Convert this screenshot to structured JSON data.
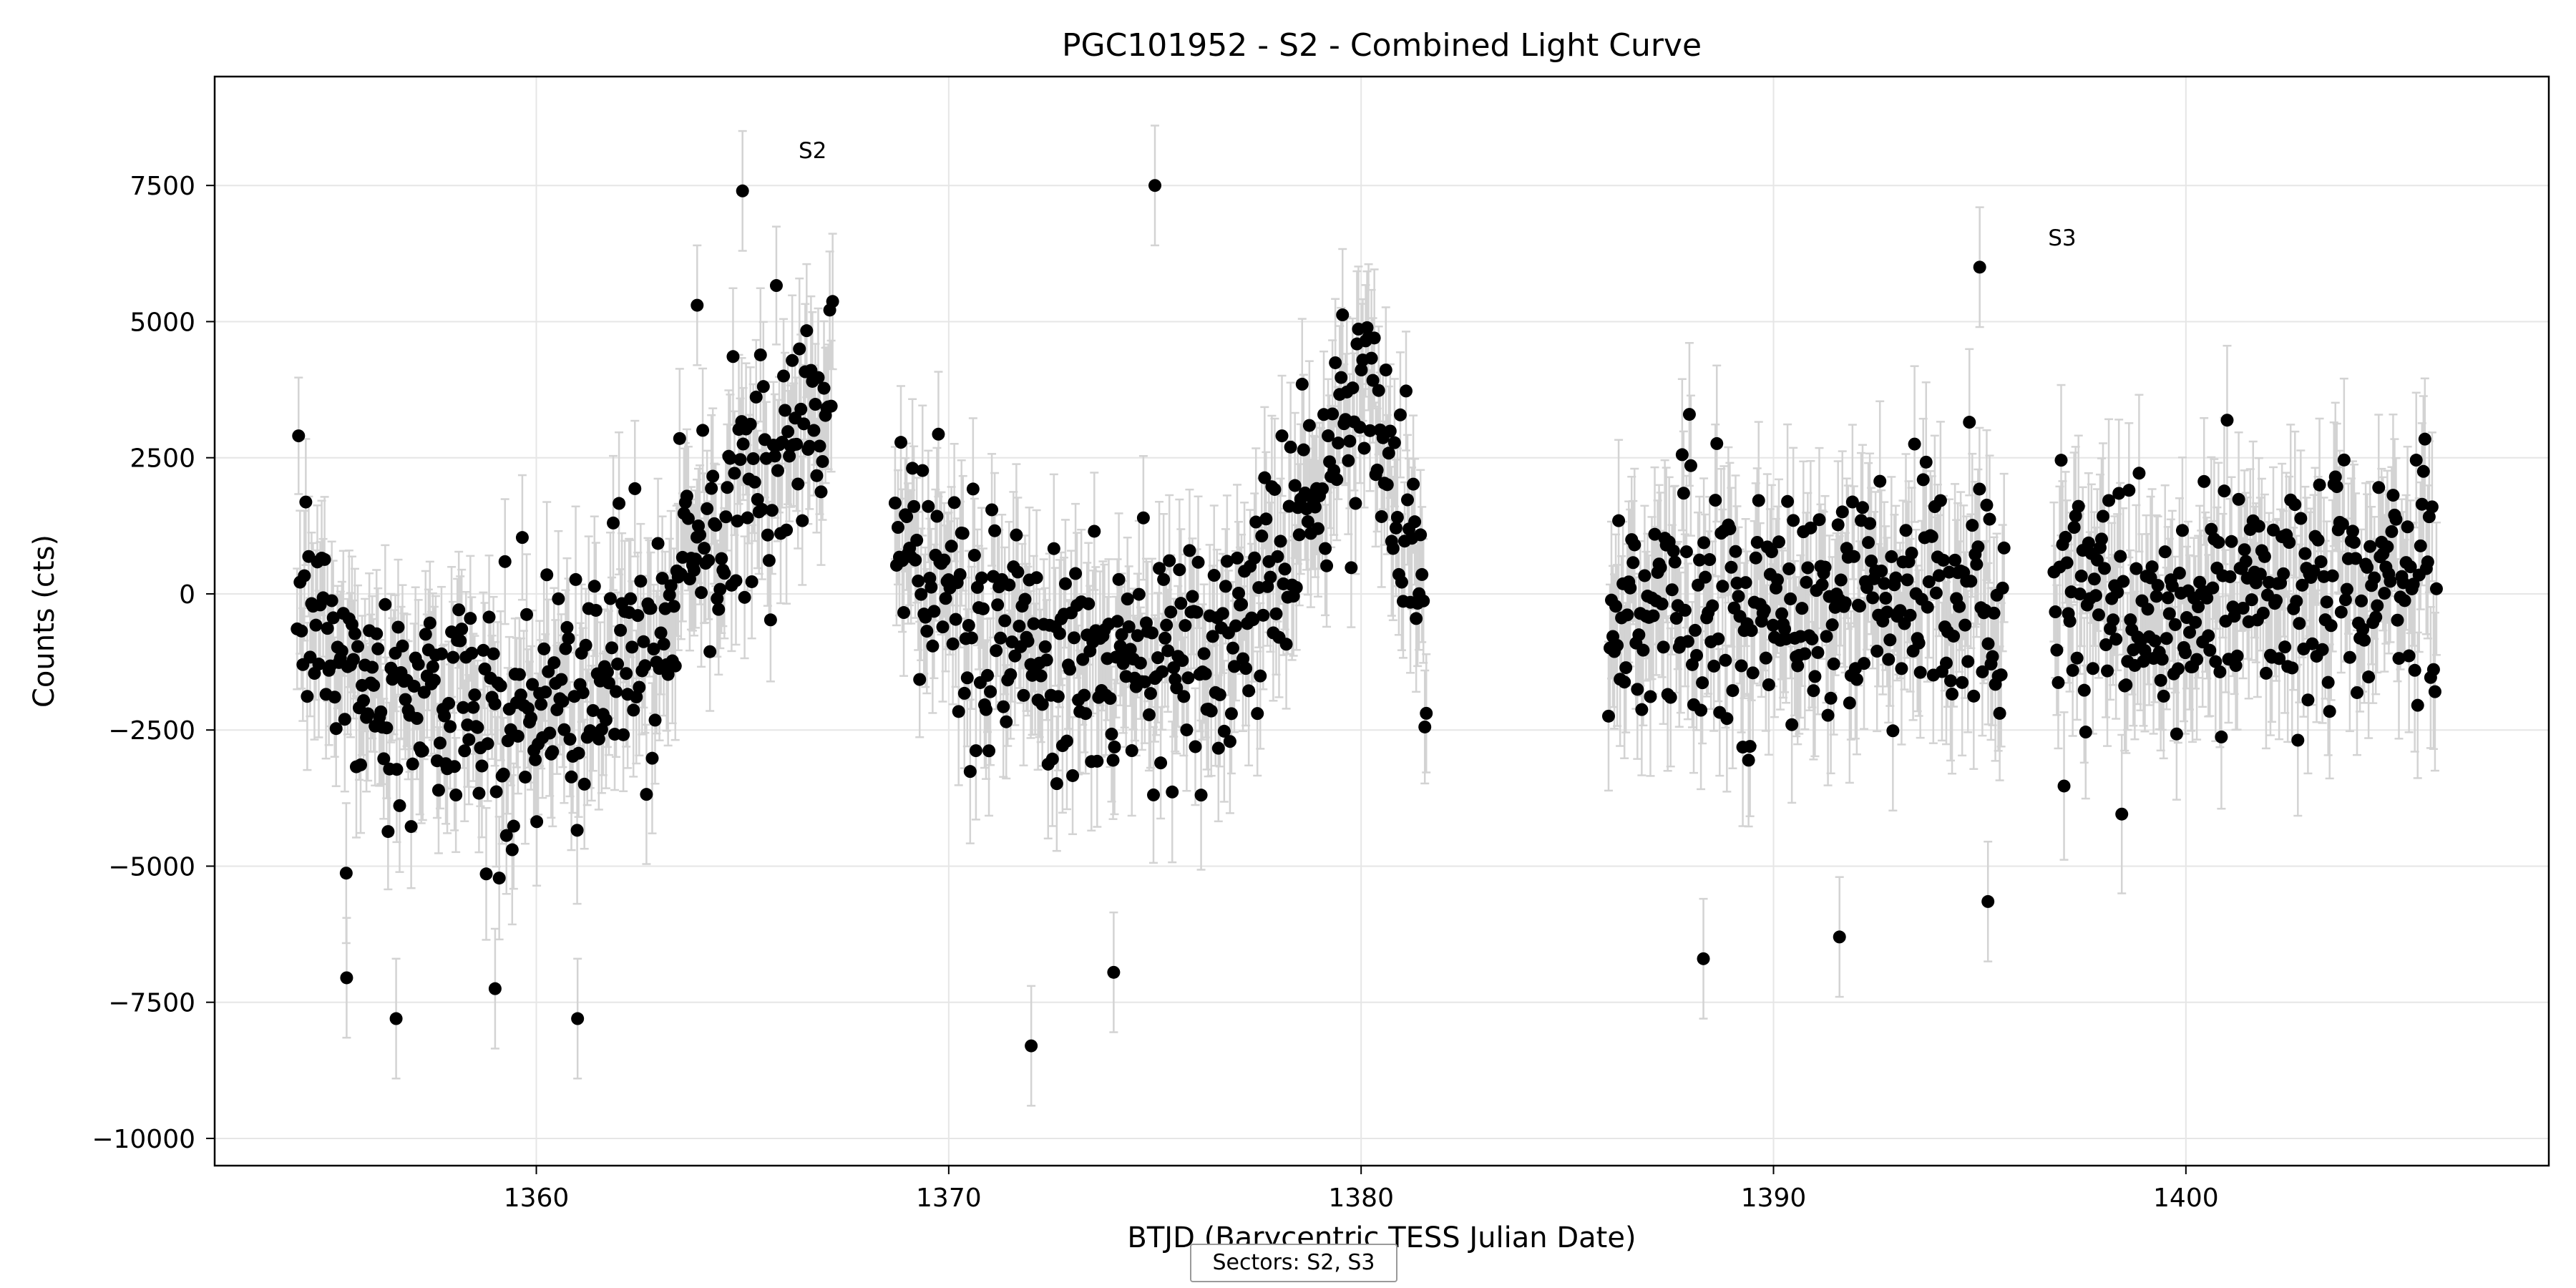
{
  "chart_data": {
    "type": "scatter",
    "title": "PGC101952 - S2 - Combined Light Curve",
    "xlabel": "BTJD (Barycentric TESS Julian Date)",
    "ylabel": "Counts (cts)",
    "xlim": [
      1352.2,
      1408.8
    ],
    "ylim": [
      -10500,
      9500
    ],
    "xticks": [
      1360,
      1370,
      1380,
      1390,
      1400
    ],
    "yticks": [
      -10000,
      -7500,
      -5000,
      -2500,
      0,
      2500,
      5000,
      7500
    ],
    "ytick_labels": [
      "−10000",
      "−7500",
      "−5000",
      "−2500",
      "0",
      "2500",
      "5000",
      "7500"
    ],
    "grid": true,
    "point_color": "#000000",
    "errorbar_color": "#d3d3d3",
    "annotations": [
      {
        "text": "S2",
        "x": 1366.7,
        "y": 8000
      },
      {
        "text": "S3",
        "x": 1397.0,
        "y": 6400
      }
    ],
    "legend": {
      "text": "Sectors: S2, S3",
      "placement": "bottom-center"
    },
    "series": [
      {
        "name": "S2",
        "segments": [
          {
            "x_start": 1354.2,
            "x_end": 1367.2,
            "step": 0.035,
            "trend": [
              [
                1354.2,
                300
              ],
              [
                1355.2,
                -1900
              ],
              [
                1357.0,
                -2100
              ],
              [
                1359.0,
                -2300
              ],
              [
                1361.0,
                -2000
              ],
              [
                1363.0,
                -400
              ],
              [
                1364.5,
                1200
              ],
              [
                1365.8,
                2900
              ],
              [
                1367.2,
                3300
              ]
            ],
            "noise": 2000,
            "error": 1200
          },
          {
            "x_start": 1368.7,
            "x_end": 1381.6,
            "step": 0.035,
            "trend": [
              [
                1368.7,
                1600
              ],
              [
                1370.0,
                -300
              ],
              [
                1372.0,
                -1100
              ],
              [
                1374.0,
                -1600
              ],
              [
                1376.0,
                -1300
              ],
              [
                1377.5,
                -300
              ],
              [
                1378.5,
                1200
              ],
              [
                1379.5,
                3200
              ],
              [
                1380.2,
                3500
              ],
              [
                1380.8,
                1500
              ],
              [
                1381.6,
                -200
              ]
            ],
            "noise": 1900,
            "error": 1200
          }
        ],
        "outliers": [
          [
            1355.4,
            -7050
          ],
          [
            1356.6,
            -7800
          ],
          [
            1361.0,
            -7800
          ],
          [
            1359.0,
            -7250
          ],
          [
            1372.0,
            -8300
          ],
          [
            1374.0,
            -6950
          ],
          [
            1375.0,
            7500
          ],
          [
            1363.9,
            5300
          ],
          [
            1365.0,
            7400
          ]
        ]
      },
      {
        "name": "S3",
        "segments": [
          {
            "x_start": 1386.0,
            "x_end": 1395.6,
            "step": 0.035,
            "trend": [
              [
                1386.0,
                -500
              ],
              [
                1388.0,
                -200
              ],
              [
                1390.0,
                -300
              ],
              [
                1392.0,
                -100
              ],
              [
                1394.0,
                100
              ],
              [
                1395.6,
                0
              ]
            ],
            "noise": 2200,
            "error": 1300
          },
          {
            "x_start": 1396.8,
            "x_end": 1406.1,
            "step": 0.035,
            "trend": [
              [
                1396.8,
                -300
              ],
              [
                1398.0,
                0
              ],
              [
                1400.0,
                -200
              ],
              [
                1402.0,
                0
              ],
              [
                1404.0,
                300
              ],
              [
                1406.1,
                300
              ]
            ],
            "noise": 2000,
            "error": 1300
          }
        ],
        "outliers": [
          [
            1388.3,
            -6700
          ],
          [
            1391.6,
            -6300
          ],
          [
            1395.0,
            6000
          ],
          [
            1395.2,
            -5650
          ]
        ]
      }
    ]
  }
}
